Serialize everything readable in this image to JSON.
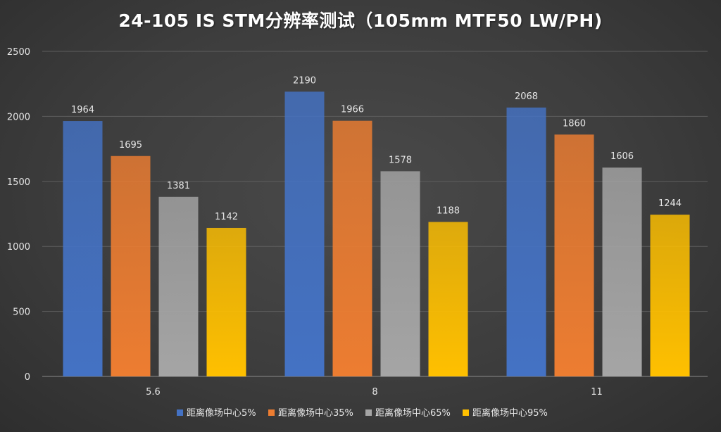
{
  "chart_data": {
    "type": "bar",
    "title": "24-105 IS STM分辨率测试（105mm MTF50 LW/PH)",
    "xlabel": "",
    "ylabel": "",
    "categories": [
      "5.6",
      "8",
      "11"
    ],
    "ylim": [
      0,
      2500
    ],
    "yticks": [
      0,
      500,
      1000,
      1500,
      2000,
      2500
    ],
    "grid": true,
    "legend_position": "bottom",
    "series": [
      {
        "name": "距离像场中心5%",
        "color": "#4472c4",
        "values": [
          1964,
          2190,
          2068
        ]
      },
      {
        "name": "距离像场中心35%",
        "color": "#ed7d31",
        "values": [
          1695,
          1966,
          1860
        ]
      },
      {
        "name": "距离像场中心65%",
        "color": "#a5a5a5",
        "values": [
          1381,
          1578,
          1606
        ]
      },
      {
        "name": "距离像场中心95%",
        "color": "#ffc000",
        "values": [
          1142,
          1188,
          1244
        ]
      }
    ]
  }
}
